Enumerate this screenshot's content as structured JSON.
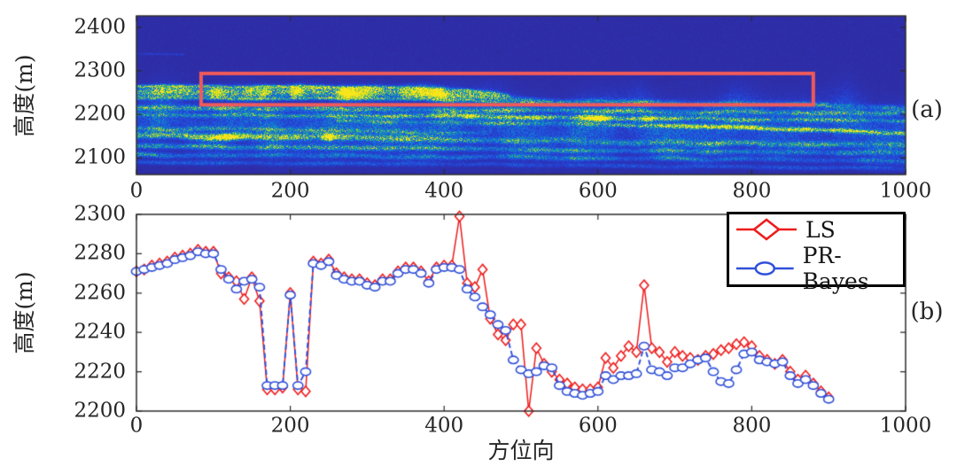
{
  "figure": {
    "subplot_a": {
      "ylabel": "高度(m)",
      "annotation": "(a)",
      "ytick_labels": [
        "2400",
        "2300",
        "2200",
        "2100"
      ],
      "yticks": [
        2400,
        2300,
        2200,
        2100
      ],
      "xtick_labels": [
        "0",
        "200",
        "400",
        "600",
        "800",
        "1000"
      ],
      "xticks": [
        0,
        200,
        400,
        600,
        800,
        1000
      ]
    },
    "subplot_b": {
      "ylabel": "高度(m)",
      "xlabel": "方位向",
      "annotation": "(b)",
      "ytick_labels": [
        "2300",
        "2280",
        "2260",
        "2240",
        "2220",
        "2200"
      ],
      "yticks": [
        2300,
        2280,
        2260,
        2240,
        2220,
        2200
      ],
      "xtick_labels": [
        "0",
        "200",
        "400",
        "600",
        "800",
        "1000"
      ],
      "xticks": [
        0,
        200,
        400,
        600,
        800,
        1000
      ]
    },
    "colors": {
      "ls": "#ee1c1c",
      "pr": "#3050d8",
      "rect": "#f05a5a",
      "axis": "#2b2b2b",
      "legend_border": "#000000"
    }
  },
  "chart_data": [
    {
      "type": "heatmap",
      "subplot": "a",
      "ylabel": "高度(m)",
      "annotation": "(a)",
      "xlim": [
        0,
        1000
      ],
      "ylim": [
        2062,
        2426
      ],
      "yticks": [
        2100,
        2200,
        2300,
        2400
      ],
      "xticks": [
        0,
        200,
        400,
        600,
        800,
        1000
      ],
      "colormap": "parula",
      "highlight_rect": {
        "x0": 84,
        "x1": 880,
        "y0": 2222,
        "y1": 2294
      },
      "bands": [
        {
          "name": "mass-fill",
          "c": [
            [
              0,
              2180
            ],
            [
              500,
              2175
            ],
            [
              1000,
              2165
            ]
          ],
          "hw": [
            [
              0,
              55
            ],
            [
              1000,
              60
            ]
          ],
          "a": [
            [
              0,
              0.28
            ],
            [
              1000,
              0.26
            ]
          ]
        },
        {
          "name": "upper-main",
          "c": [
            [
              0,
              2252
            ],
            [
              150,
              2254
            ],
            [
              300,
              2252
            ],
            [
              420,
              2248
            ],
            [
              470,
              2240
            ],
            [
              540,
              2230
            ],
            [
              700,
              2226
            ],
            [
              880,
              2222
            ],
            [
              1000,
              2216
            ]
          ],
          "hw": [
            [
              0,
              11
            ],
            [
              400,
              12
            ],
            [
              500,
              7
            ],
            [
              1000,
              6
            ]
          ],
          "a": [
            [
              0,
              0.8
            ],
            [
              420,
              0.85
            ],
            [
              520,
              0.5
            ],
            [
              700,
              0.45
            ],
            [
              880,
              0.42
            ],
            [
              1000,
              0.38
            ]
          ],
          "spark": [
            30,
            450,
            2.2
          ]
        },
        {
          "name": "upper-top-streak",
          "c": [
            [
              0,
              2266
            ],
            [
              200,
              2264
            ],
            [
              350,
              2262
            ],
            [
              430,
              2256
            ],
            [
              480,
              2246
            ]
          ],
          "hw": [
            [
              0,
              3.5
            ],
            [
              480,
              3.5
            ]
          ],
          "a": [
            [
              0,
              0.6
            ],
            [
              100,
              0.7
            ],
            [
              300,
              0.6
            ],
            [
              430,
              0.5
            ],
            [
              480,
              0.4
            ]
          ],
          "xr": [
            0,
            485
          ]
        },
        {
          "name": "upper-sub-streak",
          "c": [
            [
              0,
              2238
            ],
            [
              300,
              2237
            ],
            [
              430,
              2233
            ],
            [
              520,
              2224
            ]
          ],
          "hw": [
            [
              0,
              4
            ],
            [
              520,
              4
            ]
          ],
          "a": [
            [
              0,
              0.55
            ],
            [
              300,
              0.6
            ],
            [
              480,
              0.45
            ],
            [
              520,
              0.4
            ]
          ],
          "xr": [
            0,
            525
          ]
        },
        {
          "name": "band-2218",
          "c": [
            [
              0,
              2218
            ],
            [
              100,
              2216
            ],
            [
              300,
              2214
            ],
            [
              600,
              2209
            ],
            [
              800,
              2206
            ],
            [
              1000,
              2204
            ]
          ],
          "hw": [
            [
              0,
              6
            ],
            [
              1000,
              6
            ]
          ],
          "a": [
            [
              0,
              0.75
            ],
            [
              90,
              0.7
            ],
            [
              150,
              0.5
            ],
            [
              400,
              0.5
            ],
            [
              700,
              0.55
            ],
            [
              1000,
              0.5
            ]
          ]
        },
        {
          "name": "band-2198",
          "c": [
            [
              0,
              2201
            ],
            [
              250,
              2199
            ],
            [
              450,
              2196
            ],
            [
              620,
              2194
            ],
            [
              720,
              2191
            ],
            [
              1000,
              2186
            ]
          ],
          "hw": [
            [
              0,
              5
            ],
            [
              1000,
              5
            ]
          ],
          "a": [
            [
              0,
              0.45
            ],
            [
              300,
              0.55
            ],
            [
              450,
              0.7
            ],
            [
              600,
              0.95
            ],
            [
              680,
              0.9
            ],
            [
              730,
              0.55
            ],
            [
              1000,
              0.45
            ]
          ],
          "spark": [
            380,
            700,
            1.4
          ]
        },
        {
          "name": "band-yellow-right",
          "c": [
            [
              300,
              2186
            ],
            [
              550,
              2180
            ],
            [
              700,
              2173
            ],
            [
              800,
              2170
            ],
            [
              900,
              2164
            ],
            [
              1000,
              2158
            ]
          ],
          "hw": [
            [
              300,
              4.5
            ],
            [
              1000,
              4.5
            ]
          ],
          "a": [
            [
              300,
              0.3
            ],
            [
              550,
              0.45
            ],
            [
              640,
              0.6
            ],
            [
              700,
              0.85
            ],
            [
              770,
              1.1
            ],
            [
              900,
              1.1
            ],
            [
              950,
              0.8
            ],
            [
              1000,
              0.7
            ]
          ],
          "xr": [
            260,
            1000
          ]
        },
        {
          "name": "band-2165-left",
          "c": [
            [
              0,
              2168
            ],
            [
              150,
              2166
            ],
            [
              300,
              2162
            ],
            [
              450,
              2158
            ]
          ],
          "hw": [
            [
              0,
              5
            ],
            [
              450,
              5
            ]
          ],
          "a": [
            [
              0,
              0.4
            ],
            [
              200,
              0.45
            ],
            [
              380,
              0.35
            ],
            [
              450,
              0.3
            ]
          ],
          "xr": [
            0,
            460
          ]
        },
        {
          "name": "band-2150",
          "c": [
            [
              0,
              2152
            ],
            [
              120,
              2150
            ],
            [
              250,
              2148
            ],
            [
              400,
              2144
            ],
            [
              550,
              2140
            ],
            [
              700,
              2136
            ],
            [
              1000,
              2130
            ]
          ],
          "hw": [
            [
              0,
              7
            ],
            [
              1000,
              7
            ]
          ],
          "a": [
            [
              0,
              0.6
            ],
            [
              100,
              0.75
            ],
            [
              200,
              0.7
            ],
            [
              400,
              0.5
            ],
            [
              700,
              0.45
            ],
            [
              1000,
              0.42
            ]
          ],
          "spark": [
            60,
            260,
            1.2
          ]
        },
        {
          "name": "band-2128",
          "c": [
            [
              0,
              2128
            ],
            [
              300,
              2124
            ],
            [
              600,
              2118
            ],
            [
              1000,
              2112
            ]
          ],
          "hw": [
            [
              0,
              6
            ],
            [
              1000,
              6
            ]
          ],
          "a": [
            [
              0,
              0.45
            ],
            [
              500,
              0.42
            ],
            [
              1000,
              0.4
            ]
          ]
        },
        {
          "name": "band-2108",
          "c": [
            [
              0,
              2108
            ],
            [
              250,
              2106
            ],
            [
              500,
              2102
            ],
            [
              800,
              2098
            ],
            [
              1000,
              2092
            ]
          ],
          "hw": [
            [
              0,
              6
            ],
            [
              1000,
              6
            ]
          ],
          "a": [
            [
              0,
              0.42
            ],
            [
              400,
              0.38
            ],
            [
              700,
              0.34
            ],
            [
              1000,
              0.3
            ]
          ]
        },
        {
          "name": "band-bottom",
          "c": [
            [
              0,
              2090
            ],
            [
              500,
              2085
            ],
            [
              1000,
              2076
            ]
          ],
          "hw": [
            [
              0,
              5
            ],
            [
              1000,
              5
            ]
          ],
          "a": [
            [
              0,
              0.22
            ],
            [
              1000,
              0.18
            ]
          ]
        },
        {
          "name": "faint-top-left",
          "c": [
            [
              0,
              2340
            ],
            [
              60,
              2338
            ]
          ],
          "hw": [
            [
              0,
              2
            ],
            [
              60,
              2
            ]
          ],
          "a": [
            [
              0,
              0.14
            ],
            [
              60,
              0.1
            ]
          ],
          "xr": [
            0,
            62
          ]
        }
      ]
    },
    {
      "type": "line",
      "subplot": "b",
      "xlabel": "方位向",
      "ylabel": "高度(m)",
      "annotation": "(b)",
      "xlim": [
        0,
        1000
      ],
      "ylim": [
        2200,
        2300
      ],
      "legend_position": "top-right",
      "x": [
        0,
        10,
        20,
        30,
        40,
        50,
        60,
        70,
        80,
        90,
        100,
        110,
        120,
        130,
        140,
        150,
        160,
        170,
        180,
        190,
        200,
        210,
        220,
        230,
        240,
        250,
        260,
        270,
        280,
        290,
        300,
        310,
        320,
        330,
        340,
        350,
        360,
        370,
        380,
        390,
        400,
        410,
        420,
        430,
        440,
        450,
        460,
        470,
        480,
        490,
        500,
        510,
        520,
        530,
        540,
        550,
        560,
        570,
        580,
        590,
        600,
        610,
        620,
        630,
        640,
        650,
        660,
        670,
        680,
        690,
        700,
        710,
        720,
        730,
        740,
        750,
        760,
        770,
        780,
        790,
        800,
        810,
        820,
        830,
        840,
        850,
        860,
        870,
        880,
        890,
        900
      ],
      "series": [
        {
          "name": "LS",
          "color": "#ee1c1c",
          "style": "solid",
          "marker": "diamond",
          "values": [
            2271,
            2272,
            2274,
            2275,
            2276,
            2278,
            2279,
            2280,
            2282,
            2281,
            2281,
            2270,
            2268,
            2266,
            2257,
            2268,
            2256,
            2211,
            2211,
            2212,
            2260,
            2211,
            2210,
            2276,
            2275,
            2277,
            2270,
            2268,
            2267,
            2267,
            2265,
            2264,
            2267,
            2267,
            2271,
            2273,
            2273,
            2271,
            2266,
            2273,
            2274,
            2274,
            2299,
            2265,
            2263,
            2272,
            2247,
            2239,
            2236,
            2244,
            2244,
            2200,
            2232,
            2224,
            2220,
            2216,
            2214,
            2212,
            2211,
            2211,
            2212,
            2227,
            2222,
            2228,
            2233,
            2230,
            2264,
            2232,
            2230,
            2225,
            2230,
            2228,
            2227,
            2226,
            2228,
            2229,
            2231,
            2232,
            2234,
            2235,
            2233,
            2228,
            2226,
            2224,
            2226,
            2220,
            2216,
            2218,
            2214,
            2210,
            2207
          ]
        },
        {
          "name": "PR-Bayes",
          "color": "#3050d8",
          "style": "dashed",
          "marker": "circle",
          "values": [
            2271,
            2272,
            2273,
            2274,
            2275,
            2277,
            2278,
            2279,
            2281,
            2280,
            2280,
            2272,
            2267,
            2262,
            2266,
            2267,
            2263,
            2213,
            2213,
            2213,
            2259,
            2213,
            2220,
            2275,
            2274,
            2276,
            2269,
            2267,
            2266,
            2266,
            2264,
            2263,
            2266,
            2266,
            2270,
            2272,
            2272,
            2270,
            2265,
            2272,
            2273,
            2273,
            2272,
            2262,
            2258,
            2253,
            2249,
            2244,
            2241,
            2226,
            2221,
            2219,
            2220,
            2223,
            2222,
            2213,
            2210,
            2209,
            2208,
            2209,
            2210,
            2218,
            2216,
            2218,
            2218,
            2219,
            2233,
            2221,
            2220,
            2218,
            2222,
            2222,
            2224,
            2226,
            2227,
            2220,
            2215,
            2214,
            2221,
            2229,
            2230,
            2226,
            2225,
            2224,
            2225,
            2218,
            2214,
            2216,
            2213,
            2209,
            2206
          ]
        }
      ]
    }
  ]
}
